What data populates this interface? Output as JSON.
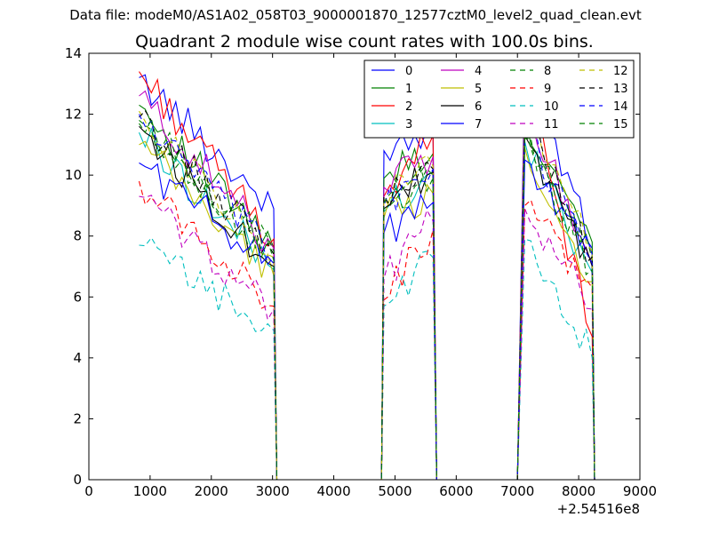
{
  "header": {
    "data_file": "Data file: modeM0/AS1A02_058T03_9000001870_12577cztM0_level2_quad_clean.evt"
  },
  "chart_data": {
    "type": "line",
    "title": "Quadrant 2 module wise count rates with 100.0s bins.",
    "xlabel": "",
    "ylabel": "",
    "xlim": [
      0,
      9000
    ],
    "ylim": [
      0,
      14
    ],
    "x_offset_label": "+2.54516e8",
    "x_ticks": [
      0,
      1000,
      2000,
      3000,
      4000,
      5000,
      6000,
      7000,
      8000,
      9000
    ],
    "y_ticks": [
      0,
      2,
      4,
      6,
      8,
      10,
      12,
      14
    ],
    "legend_position": "top-right",
    "segments": [
      {
        "x0": 820,
        "x1": 3020,
        "n": 23,
        "drop_x": 3070,
        "zero_x": 3120
      },
      {
        "x0": 4820,
        "x1": 5620,
        "n": 9,
        "rise_x": 4780,
        "drop_x": 5680,
        "zero_x": 5820
      },
      {
        "x0": 7120,
        "x1": 8220,
        "n": 12,
        "rise_x": 7000,
        "drop_x": 8260
      }
    ],
    "series": [
      {
        "name": "0",
        "color": "#0000ff",
        "dash": "solid",
        "seg_start": [
          13.2,
          10.8,
          13.6
        ],
        "seg_end": [
          8.9,
          11.6,
          7.6
        ]
      },
      {
        "name": "1",
        "color": "#008000",
        "dash": "solid",
        "seg_start": [
          12.3,
          9.9,
          11.9
        ],
        "seg_end": [
          7.6,
          10.7,
          7.8
        ]
      },
      {
        "name": "2",
        "color": "#ff0000",
        "dash": "solid",
        "seg_start": [
          13.4,
          9.3,
          12.9
        ],
        "seg_end": [
          7.9,
          11.3,
          4.7
        ]
      },
      {
        "name": "3",
        "color": "#00bfbf",
        "dash": "solid",
        "seg_start": [
          11.4,
          8.8,
          11.1
        ],
        "seg_end": [
          6.9,
          10.1,
          6.8
        ]
      },
      {
        "name": "4",
        "color": "#bf00bf",
        "dash": "solid",
        "seg_start": [
          12.6,
          9.6,
          12.4
        ],
        "seg_end": [
          7.6,
          10.6,
          7.1
        ]
      },
      {
        "name": "5",
        "color": "#bfbf00",
        "dash": "solid",
        "seg_start": [
          11.0,
          8.6,
          10.9
        ],
        "seg_end": [
          6.7,
          9.4,
          6.5
        ]
      },
      {
        "name": "6",
        "color": "#000000",
        "dash": "solid",
        "seg_start": [
          11.6,
          8.9,
          11.3
        ],
        "seg_end": [
          7.0,
          10.1,
          7.0
        ]
      },
      {
        "name": "7",
        "color": "#0000ff",
        "dash": "solid",
        "seg_start": [
          10.4,
          8.1,
          10.5
        ],
        "seg_end": [
          7.1,
          9.1,
          7.4
        ]
      },
      {
        "name": "8",
        "color": "#008000",
        "dash": "dashed",
        "seg_start": [
          11.8,
          9.3,
          11.2
        ],
        "seg_end": [
          7.5,
          9.9,
          7.2
        ]
      },
      {
        "name": "9",
        "color": "#ff0000",
        "dash": "dashed",
        "seg_start": [
          9.8,
          5.9,
          9.0
        ],
        "seg_end": [
          5.7,
          8.2,
          6.3
        ]
      },
      {
        "name": "10",
        "color": "#00bfbf",
        "dash": "dashed",
        "seg_start": [
          7.7,
          5.7,
          7.9
        ],
        "seg_end": [
          4.9,
          7.3,
          4.0
        ]
      },
      {
        "name": "11",
        "color": "#bf00bf",
        "dash": "dashed",
        "seg_start": [
          9.3,
          6.6,
          8.9
        ],
        "seg_end": [
          5.6,
          8.5,
          5.6
        ]
      },
      {
        "name": "12",
        "color": "#bfbf00",
        "dash": "dashed",
        "seg_start": [
          12.1,
          9.2,
          12.2
        ],
        "seg_end": [
          7.3,
          10.3,
          7.5
        ]
      },
      {
        "name": "13",
        "color": "#000000",
        "dash": "dashed",
        "seg_start": [
          11.9,
          9.3,
          12.0
        ],
        "seg_end": [
          7.4,
          10.2,
          7.3
        ]
      },
      {
        "name": "14",
        "color": "#0000ff",
        "dash": "dashed",
        "seg_start": [
          12.0,
          9.0,
          11.7
        ],
        "seg_end": [
          7.3,
          10.2,
          7.1
        ]
      },
      {
        "name": "15",
        "color": "#008000",
        "dash": "dashed",
        "seg_start": [
          11.7,
          9.1,
          11.5
        ],
        "seg_end": [
          7.2,
          10.0,
          6.9
        ]
      }
    ]
  }
}
